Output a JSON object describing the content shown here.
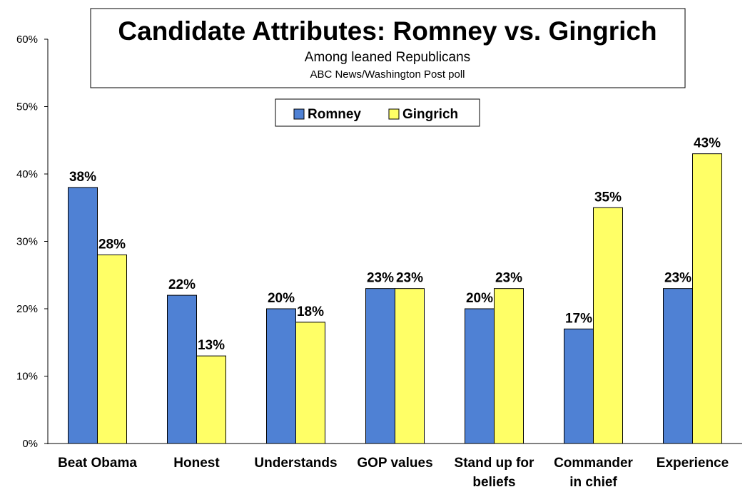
{
  "chart_data": {
    "type": "bar",
    "title": "Candidate Attributes: Romney vs. Gingrich",
    "subtitle": "Among leaned Republicans",
    "source": "ABC News/Washington Post poll",
    "categories": [
      [
        "Beat Obama"
      ],
      [
        "Honest"
      ],
      [
        "Understands"
      ],
      [
        "GOP values"
      ],
      [
        "Stand up for",
        "beliefs"
      ],
      [
        "Commander",
        "in chief"
      ],
      [
        "Experience"
      ]
    ],
    "series": [
      {
        "name": "Romney",
        "color": "#4F81D4",
        "values": [
          38,
          22,
          20,
          23,
          20,
          17,
          23
        ]
      },
      {
        "name": "Gingrich",
        "color": "#FFFF66",
        "values": [
          28,
          13,
          18,
          23,
          23,
          35,
          43
        ]
      }
    ],
    "value_suffix": "%",
    "yticks": [
      "0%",
      "10%",
      "20%",
      "30%",
      "40%",
      "50%",
      "60%"
    ],
    "ylim": [
      0,
      60
    ],
    "legend_position": "top-center",
    "grid": false
  }
}
